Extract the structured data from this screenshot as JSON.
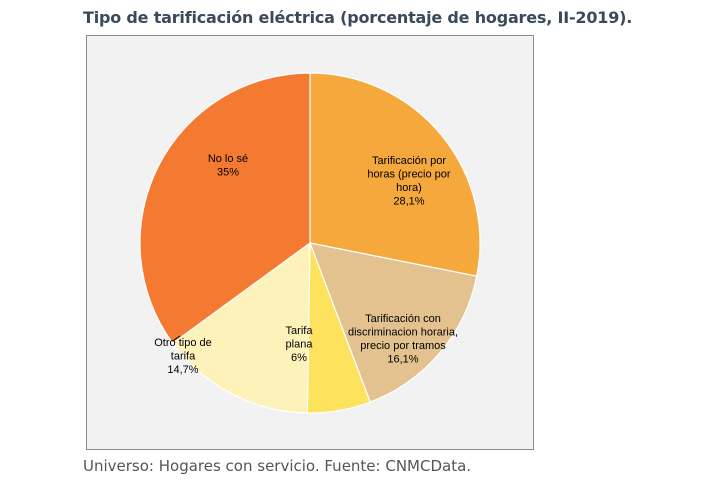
{
  "title": "Tipo de tarificación eléctrica (porcentaje de hogares, II-2019).",
  "source": "Universo: Hogares con servicio. Fuente: CNMCData.",
  "chart_data": {
    "type": "pie",
    "title": "Tipo de tarificación eléctrica (porcentaje de hogares, II-2019).",
    "start_angle_deg": 0,
    "direction": "clockwise",
    "slices": [
      {
        "name": "Tarificación por horas (precio por hora)",
        "value": 28.1,
        "color": "#f5a83c",
        "label_lines": [
          "Tarificación por",
          "horas (precio por",
          "hora)",
          "28,1%"
        ]
      },
      {
        "name": "Tarificación con discriminacion horaria, precio por tramos",
        "value": 16.1,
        "color": "#e3c290",
        "label_lines": [
          "Tarificación con",
          "discriminacion horaria,",
          "precio por tramos",
          "16,1%"
        ]
      },
      {
        "name": "Tarifa plana",
        "value": 6,
        "color": "#fde25e",
        "label_lines": [
          "Tarifa",
          "plana",
          "6%"
        ]
      },
      {
        "name": "Otro tipo de tarifa",
        "value": 14.7,
        "color": "#fef2bb",
        "label_lines": [
          "Otro tipo de",
          "tarifa",
          "14,7%"
        ]
      },
      {
        "name": "No lo sé",
        "value": 35,
        "color": "#f47a32",
        "label_lines": [
          "No lo sé",
          "35%"
        ]
      }
    ]
  }
}
